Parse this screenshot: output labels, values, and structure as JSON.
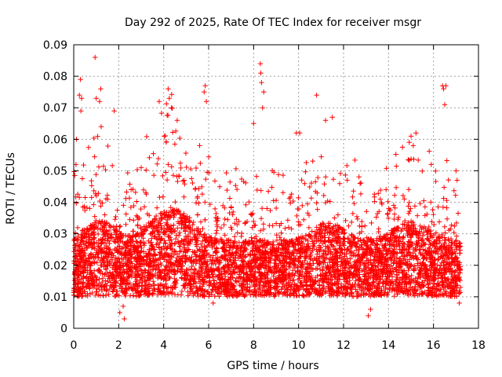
{
  "chart_data": {
    "type": "scatter",
    "title": "Day 292 of 2025, Rate Of TEC Index for receiver msgr",
    "xlabel": "GPS time / hours",
    "ylabel": "ROTI / TECUs",
    "xlim": [
      0,
      18
    ],
    "ylim": [
      0,
      0.09
    ],
    "x_ticks": [
      0,
      2,
      4,
      6,
      8,
      10,
      12,
      14,
      16,
      18
    ],
    "x_tick_labels": [
      "0",
      "2",
      "4",
      "6",
      "8",
      "10",
      "12",
      "14",
      "16",
      "18"
    ],
    "y_ticks": [
      0,
      0.01,
      0.02,
      0.03,
      0.04,
      0.05,
      0.06,
      0.07,
      0.08,
      0.09
    ],
    "y_tick_labels": [
      "0",
      "0.01",
      "0.02",
      "0.03",
      "0.04",
      "0.05",
      "0.06",
      "0.07",
      "0.08",
      "0.09"
    ],
    "grid": true,
    "marker": "+",
    "marker_color": "#ff0000",
    "data_range_hours": [
      0,
      17.2
    ],
    "series": [
      {
        "name": "ROTI",
        "color": "#ff0000",
        "points": [
          [
            0.1,
            0.052
          ],
          [
            0.12,
            0.06
          ],
          [
            0.25,
            0.074
          ],
          [
            0.3,
            0.079
          ],
          [
            0.32,
            0.069
          ],
          [
            0.35,
            0.073
          ],
          [
            0.95,
            0.086
          ],
          [
            1.0,
            0.073
          ],
          [
            1.15,
            0.072
          ],
          [
            1.2,
            0.076
          ],
          [
            1.22,
            0.064
          ],
          [
            1.8,
            0.069
          ],
          [
            2.05,
            0.005
          ],
          [
            2.2,
            0.007
          ],
          [
            2.25,
            0.003
          ],
          [
            3.0,
            0.051
          ],
          [
            3.8,
            0.072
          ],
          [
            4.2,
            0.076
          ],
          [
            4.25,
            0.073
          ],
          [
            4.35,
            0.07
          ],
          [
            4.6,
            0.066
          ],
          [
            5.6,
            0.058
          ],
          [
            5.8,
            0.075
          ],
          [
            5.85,
            0.077
          ],
          [
            5.9,
            0.072
          ],
          [
            6.2,
            0.008
          ],
          [
            8.0,
            0.065
          ],
          [
            8.3,
            0.084
          ],
          [
            8.32,
            0.081
          ],
          [
            8.35,
            0.078
          ],
          [
            8.4,
            0.07
          ],
          [
            8.45,
            0.075
          ],
          [
            9.9,
            0.062
          ],
          [
            10.05,
            0.062
          ],
          [
            10.8,
            0.074
          ],
          [
            11.2,
            0.066
          ],
          [
            11.5,
            0.067
          ],
          [
            13.1,
            0.004
          ],
          [
            13.2,
            0.006
          ],
          [
            15.0,
            0.061
          ],
          [
            15.1,
            0.058
          ],
          [
            15.9,
            0.052
          ],
          [
            16.4,
            0.077
          ],
          [
            16.45,
            0.076
          ],
          [
            16.5,
            0.071
          ],
          [
            16.55,
            0.077
          ],
          [
            17.0,
            0.05
          ],
          [
            17.05,
            0.047
          ],
          [
            17.15,
            0.008
          ],
          [
            0.0,
            0.012
          ],
          [
            17.2,
            0.013
          ]
        ]
      }
    ]
  }
}
